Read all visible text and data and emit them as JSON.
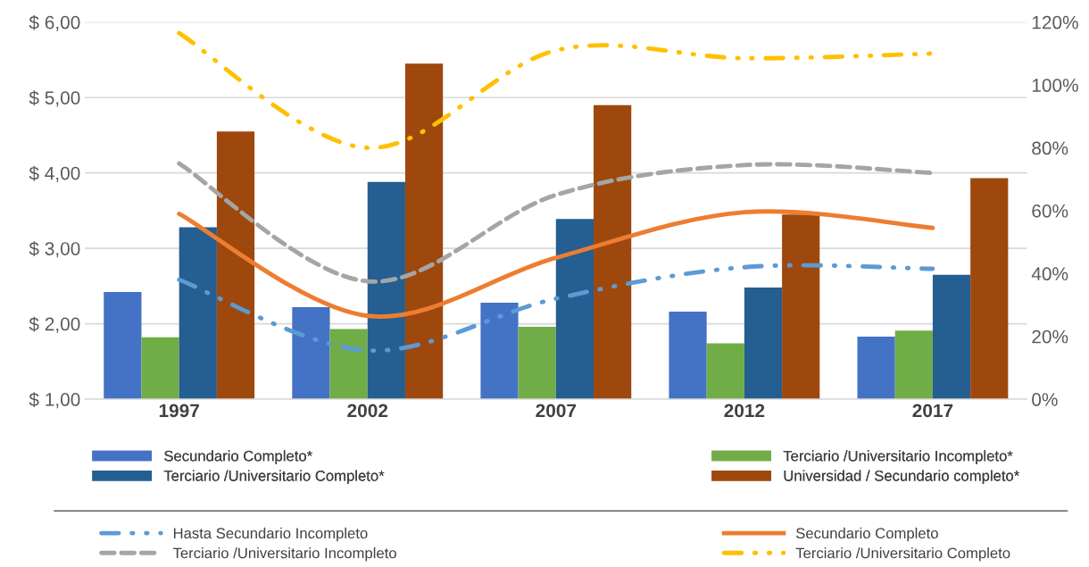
{
  "chart_data": {
    "type": "bar",
    "categories": [
      "1997",
      "2002",
      "2007",
      "2012",
      "2017"
    ],
    "series": [
      {
        "name": "Secundario Completo*",
        "color": "#4472c4",
        "values": [
          2.42,
          2.22,
          2.28,
          2.16,
          1.83
        ]
      },
      {
        "name": "Terciario /Universitario Incompleto*",
        "color": "#70ad47",
        "values": [
          1.82,
          1.93,
          1.96,
          1.74,
          1.91
        ]
      },
      {
        "name": "Terciario /Universitario Completo*",
        "color": "#255e91",
        "values": [
          3.28,
          3.88,
          3.39,
          2.48,
          2.65
        ]
      },
      {
        "name": "Universidad / Secundario completo*",
        "color": "#9e480e",
        "values": [
          4.55,
          5.45,
          4.9,
          3.45,
          3.93
        ]
      },
      {
        "name": "Hasta Secundario Incompleto",
        "type": "line",
        "axis": "y2",
        "line_style": "dashdot",
        "color": "#5b9bd5",
        "values": [
          38,
          15.5,
          32,
          42,
          41.5
        ]
      },
      {
        "name": "Secundario Completo",
        "type": "line",
        "axis": "y2",
        "line_style": "solid",
        "color": "#ed7d31",
        "values": [
          59,
          26.5,
          45,
          59.5,
          54.5
        ]
      },
      {
        "name": "Terciario /Universitario Incompleto",
        "type": "line",
        "axis": "y2",
        "line_style": "dashed",
        "color": "#a5a5a5",
        "values": [
          75,
          37.5,
          65,
          74.5,
          72
        ]
      },
      {
        "name": "Terciario /Universitario Completo",
        "type": "line",
        "axis": "y2",
        "line_style": "dashdot",
        "color": "#ffc000",
        "values": [
          116.5,
          80,
          111,
          108.5,
          110
        ]
      }
    ],
    "ylim": [
      1,
      6
    ],
    "yticks": [
      {
        "value": 1,
        "label": "$ 1,00"
      },
      {
        "value": 2,
        "label": "$ 2,00"
      },
      {
        "value": 3,
        "label": "$ 3,00"
      },
      {
        "value": 4,
        "label": "$ 4,00"
      },
      {
        "value": 5,
        "label": "$ 5,00"
      },
      {
        "value": 6,
        "label": "$ 6,00"
      }
    ],
    "y2lim": [
      0,
      120
    ],
    "y2ticks": [
      {
        "value": 0,
        "label": "0%"
      },
      {
        "value": 20,
        "label": "20%"
      },
      {
        "value": 40,
        "label": "40%"
      },
      {
        "value": 60,
        "label": "60%"
      },
      {
        "value": 80,
        "label": "80%"
      },
      {
        "value": 100,
        "label": "100%"
      },
      {
        "value": 120,
        "label": "120%"
      }
    ],
    "grid": "y",
    "legend": "bottom"
  }
}
